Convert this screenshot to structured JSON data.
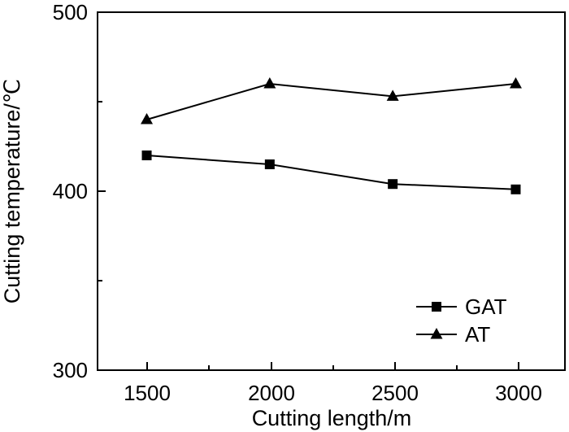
{
  "chart_data": {
    "type": "line",
    "title": "",
    "xlabel": "Cutting length/m",
    "ylabel": "Cutting temperature/℃",
    "x": [
      1500,
      2000,
      2500,
      3000
    ],
    "xlim": [
      1300,
      3200
    ],
    "ylim": [
      300,
      500
    ],
    "xticks": [
      "1500",
      "2000",
      "2500",
      "3000"
    ],
    "yticks": [
      "300",
      "400",
      "500"
    ],
    "grid": false,
    "legend_position": "bottom-right",
    "series": [
      {
        "name": "GAT",
        "marker": "square",
        "values": [
          420,
          415,
          404,
          401
        ],
        "color": "#000000"
      },
      {
        "name": "AT",
        "marker": "triangle",
        "values": [
          440,
          460,
          453,
          460
        ],
        "color": "#000000"
      }
    ]
  }
}
